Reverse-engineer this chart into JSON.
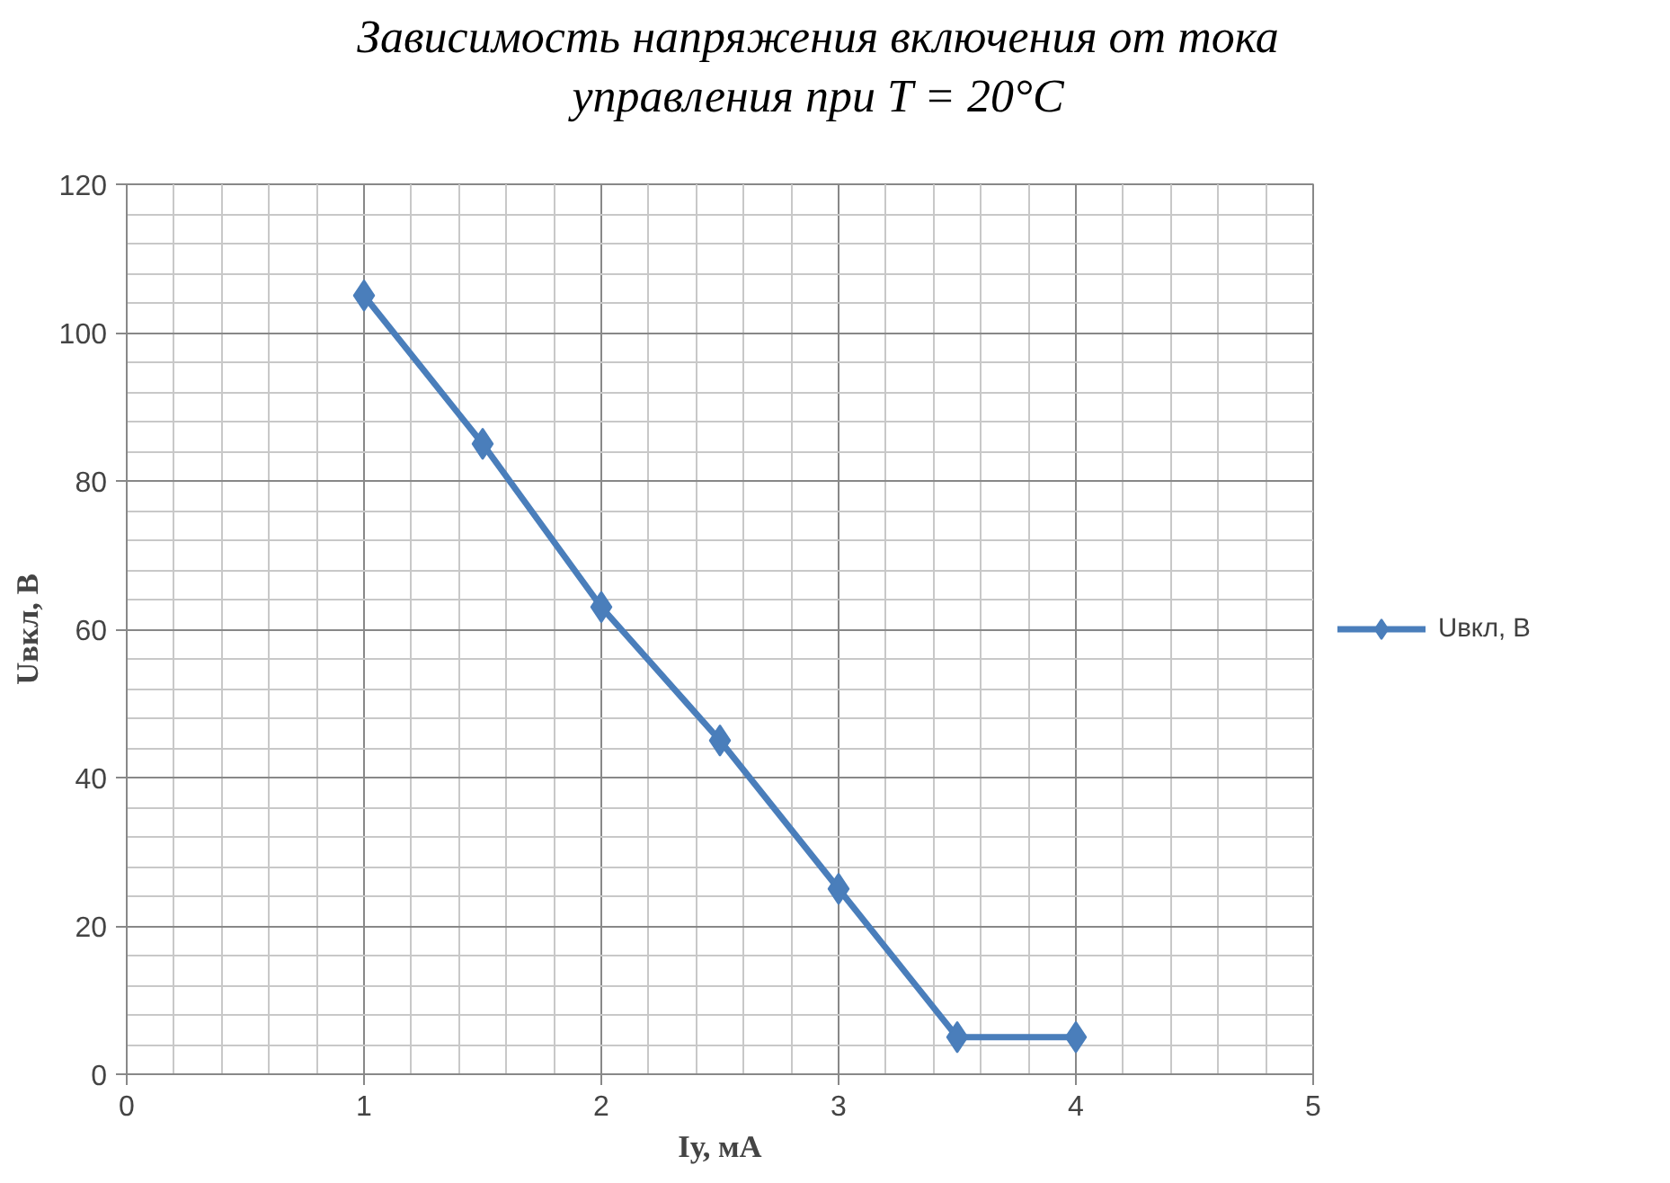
{
  "chart_data": {
    "type": "line",
    "title": "Зависимость напряжения включения от тока\nуправления при T = 20°C",
    "xlabel": "Iу, мА",
    "ylabel": "Uвкл, В",
    "x": [
      1,
      1.5,
      2,
      2.5,
      3,
      3.5,
      4
    ],
    "series": [
      {
        "name": "Uвкл, В",
        "color": "#4a7ebb",
        "values": [
          105,
          85,
          63,
          45,
          25,
          5,
          5
        ]
      }
    ],
    "xlim": [
      0,
      5
    ],
    "xticks": [
      0,
      1,
      2,
      3,
      4,
      5
    ],
    "ylim": [
      0,
      120
    ],
    "yticks": [
      0,
      20,
      40,
      60,
      80,
      100,
      120
    ],
    "grid": true,
    "legend": "right",
    "marker": "diamond",
    "line_style": "solid"
  }
}
